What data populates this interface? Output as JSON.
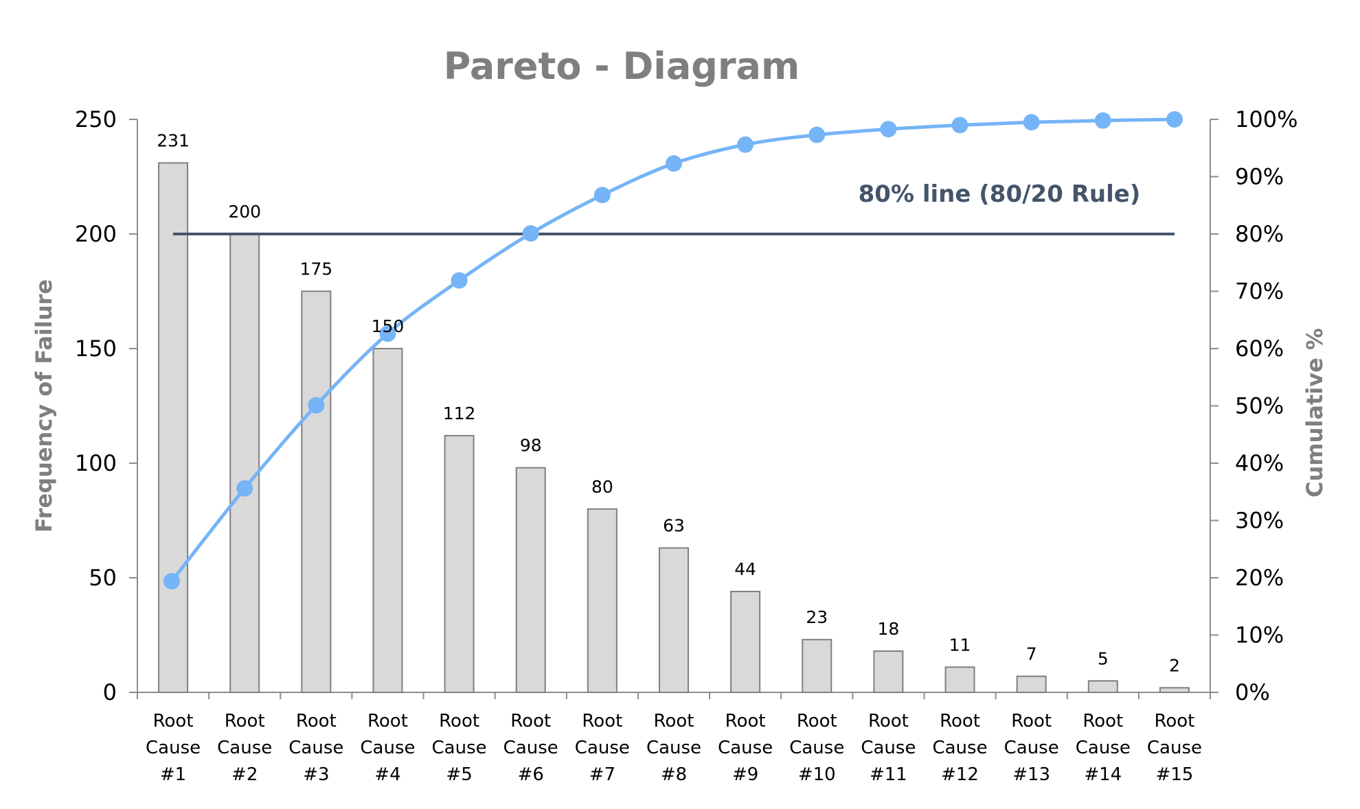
{
  "chart_data": {
    "type": "bar",
    "title": "Pareto - Diagram",
    "ylabel": "Frequency of Failure",
    "y2label": "Cumulative %",
    "ylim": [
      0,
      250
    ],
    "y2lim": [
      0,
      100
    ],
    "yticks": [
      "0",
      "50",
      "100",
      "150",
      "200",
      "250"
    ],
    "y2ticks": [
      "0%",
      "10%",
      "20%",
      "30%",
      "40%",
      "50%",
      "60%",
      "70%",
      "80%",
      "90%",
      "100%"
    ],
    "categories": [
      [
        "Root",
        "Cause",
        "#1"
      ],
      [
        "Root",
        "Cause",
        "#2"
      ],
      [
        "Root",
        "Cause",
        "#3"
      ],
      [
        "Root",
        "Cause",
        "#4"
      ],
      [
        "Root",
        "Cause",
        "#5"
      ],
      [
        "Root",
        "Cause",
        "#6"
      ],
      [
        "Root",
        "Cause",
        "#7"
      ],
      [
        "Root",
        "Cause",
        "#8"
      ],
      [
        "Root",
        "Cause",
        "#9"
      ],
      [
        "Root",
        "Cause",
        "#10"
      ],
      [
        "Root",
        "Cause",
        "#11"
      ],
      [
        "Root",
        "Cause",
        "#12"
      ],
      [
        "Root",
        "Cause",
        "#13"
      ],
      [
        "Root",
        "Cause",
        "#14"
      ],
      [
        "Root",
        "Cause",
        "#15"
      ]
    ],
    "series": [
      {
        "type": "bar",
        "axis": "left",
        "values": [
          231,
          200,
          175,
          150,
          112,
          98,
          80,
          63,
          44,
          23,
          18,
          11,
          7,
          5,
          2
        ],
        "data_labels": [
          "231",
          "200",
          "175",
          "150",
          "112",
          "98",
          "80",
          "63",
          "44",
          "23",
          "18",
          "11",
          "7",
          "5",
          "2"
        ],
        "color": "#d9d9d9",
        "edge_color": "#7f7f7f"
      },
      {
        "type": "line",
        "axis": "right",
        "values": [
          19.4,
          35.6,
          50.1,
          62.6,
          71.9,
          80.1,
          86.8,
          92.3,
          95.6,
          97.3,
          98.3,
          99.0,
          99.5,
          99.8,
          100.0
        ],
        "color": "#75b4f6"
      }
    ],
    "reference_line": {
      "axis": "right",
      "value": 80,
      "label": "80% line  (80/20 Rule)",
      "color": "#44546a"
    },
    "grid": false,
    "legend": "none"
  }
}
